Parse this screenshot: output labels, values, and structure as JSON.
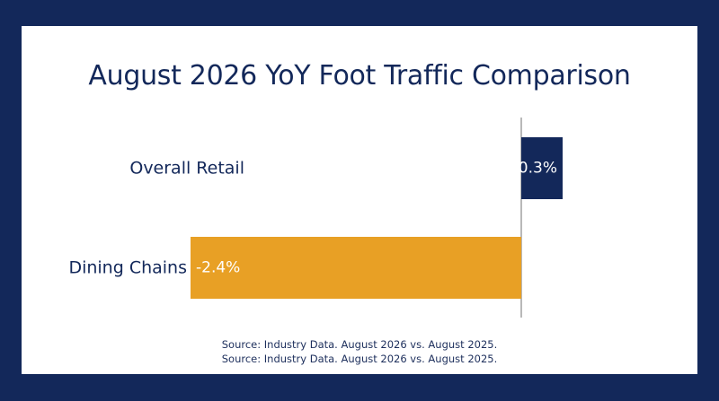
{
  "chart_data": {
    "type": "bar",
    "orientation": "horizontal",
    "title": "August 2026 YoY Foot Traffic Comparison",
    "categories": [
      "Overall Retail",
      "Dining Chains"
    ],
    "values": [
      0.3,
      -2.4
    ],
    "value_labels": [
      "+0.3%",
      "-2.4%"
    ],
    "colors": [
      "#13285a",
      "#e8a025"
    ],
    "xlim": [
      -2.4,
      0.3
    ],
    "grid": false,
    "legend": "none"
  },
  "sources": [
    "Source: Industry Data. August 2026 vs. August 2025.",
    "Source: Industry Data. August 2026 vs. August 2025."
  ]
}
